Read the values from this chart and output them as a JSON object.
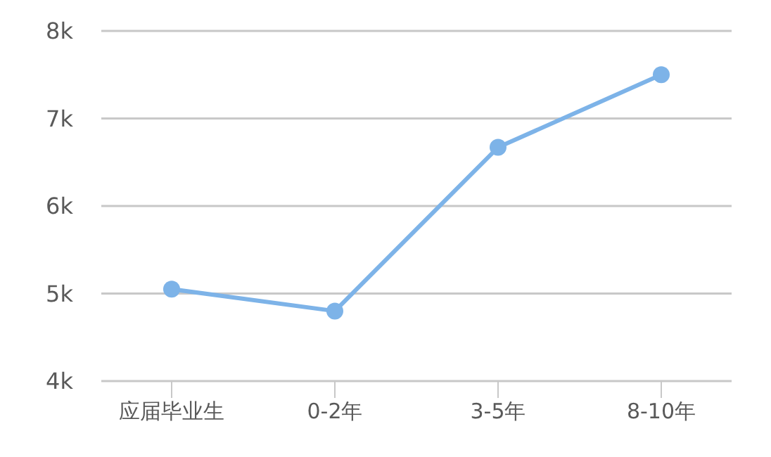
{
  "chart_data": {
    "type": "line",
    "categories": [
      "应届毕业生",
      "0-2年",
      "3-5年",
      "8-10年"
    ],
    "series": [
      {
        "color": "#7db3e8",
        "values": [
          5.05,
          4.8,
          6.67,
          7.5
        ]
      }
    ],
    "ylim": [
      4,
      8
    ],
    "yticks": [
      {
        "value": 4,
        "label": "4k"
      },
      {
        "value": 5,
        "label": "5k"
      },
      {
        "value": 6,
        "label": "6k"
      },
      {
        "value": 7,
        "label": "7k"
      },
      {
        "value": 8,
        "label": "8k"
      }
    ],
    "grid": "y",
    "legend": false,
    "marker": "circle",
    "line_style": "solid"
  }
}
